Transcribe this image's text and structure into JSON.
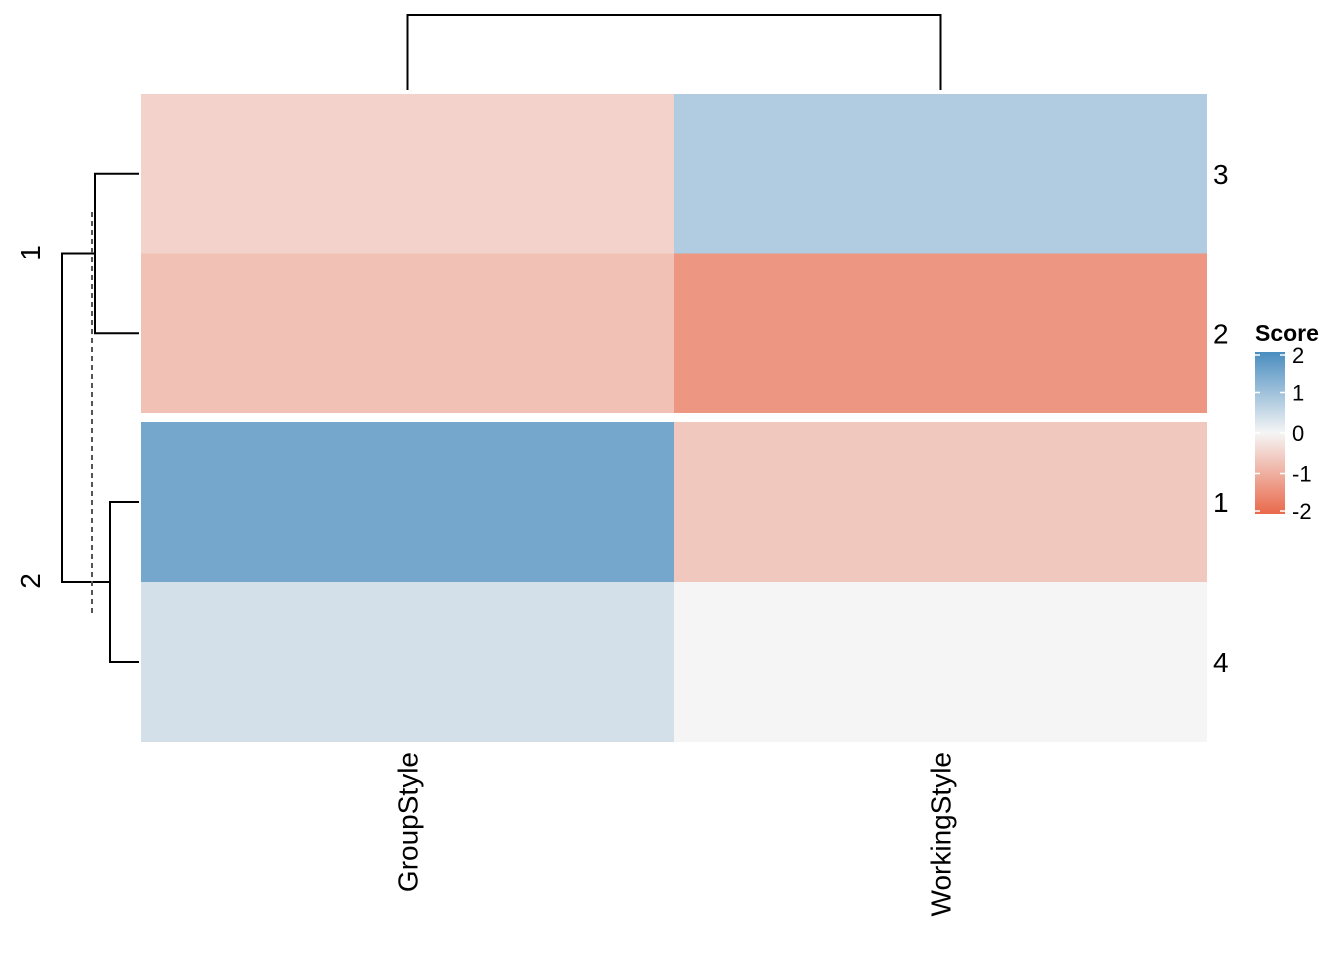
{
  "chart_data": {
    "type": "heatmap",
    "columns": [
      "GroupStyle",
      "WorkingStyle"
    ],
    "rows": [
      "3",
      "2",
      "1",
      "4"
    ],
    "values": [
      [
        -0.5,
        0.8
      ],
      [
        -0.75,
        -1.35
      ],
      [
        1.5,
        -0.65
      ],
      [
        0.4,
        0.0
      ]
    ],
    "row_splits": [
      {
        "label": "1",
        "rows": [
          "3",
          "2"
        ]
      },
      {
        "label": "2",
        "rows": [
          "1",
          "4"
        ]
      }
    ],
    "row_dendrogram": {
      "merges": [
        [
          "3",
          "2"
        ],
        [
          "1",
          "4"
        ],
        [
          "split-1",
          "split-2"
        ]
      ]
    },
    "column_dendrogram": {
      "merges": [
        [
          "GroupStyle",
          "WorkingStyle"
        ]
      ]
    },
    "legend": {
      "title": "Score",
      "ticks": [
        2,
        1,
        0,
        -1,
        -2
      ],
      "tick_labels": [
        "2",
        "1",
        "0",
        "-1",
        "-2"
      ],
      "placement": "right",
      "color_high": "#4a8dc0",
      "color_mid": "#f5f5f5",
      "color_low": "#e9694b"
    },
    "value_range": [
      -2,
      2
    ]
  }
}
